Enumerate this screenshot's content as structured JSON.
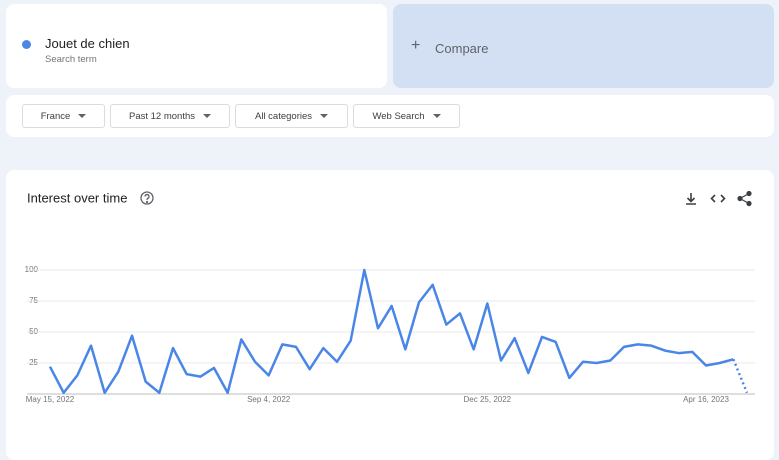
{
  "search_term": {
    "label": "Jouet de chien",
    "sublabel": "Search term"
  },
  "compare": "Compare",
  "filters": [
    "France",
    "Past 12 months",
    "All categories",
    "Web Search"
  ],
  "chart_data": {
    "type": "line",
    "title": "Interest over time",
    "x": [
      "May 15, 2022",
      null,
      null,
      null,
      null,
      null,
      null,
      null,
      null,
      null,
      null,
      null,
      null,
      null,
      null,
      null,
      "Sep 4, 2022",
      null,
      null,
      null,
      null,
      null,
      null,
      null,
      null,
      null,
      null,
      null,
      null,
      null,
      null,
      null,
      "Dec 25, 2022",
      null,
      null,
      null,
      null,
      null,
      null,
      null,
      null,
      null,
      null,
      null,
      null,
      null,
      null,
      null,
      "Apr 16, 2023",
      null,
      null,
      null
    ],
    "series": [
      {
        "color": "#4a86e8",
        "values": [
          22,
          1,
          15,
          39,
          1,
          18,
          47,
          10,
          1,
          37,
          16,
          14,
          21,
          1,
          44,
          26,
          15,
          40,
          38,
          20,
          37,
          26,
          43,
          100,
          53,
          71,
          36,
          74,
          88,
          56,
          65,
          36,
          73,
          27,
          45,
          17,
          46,
          42,
          13,
          26,
          25,
          27,
          38,
          40,
          39,
          35,
          33,
          34,
          23,
          25,
          28,
          1
        ]
      }
    ],
    "ylim": [
      0,
      100
    ],
    "yticks": [
      25,
      50,
      75,
      100
    ],
    "grid": true
  }
}
